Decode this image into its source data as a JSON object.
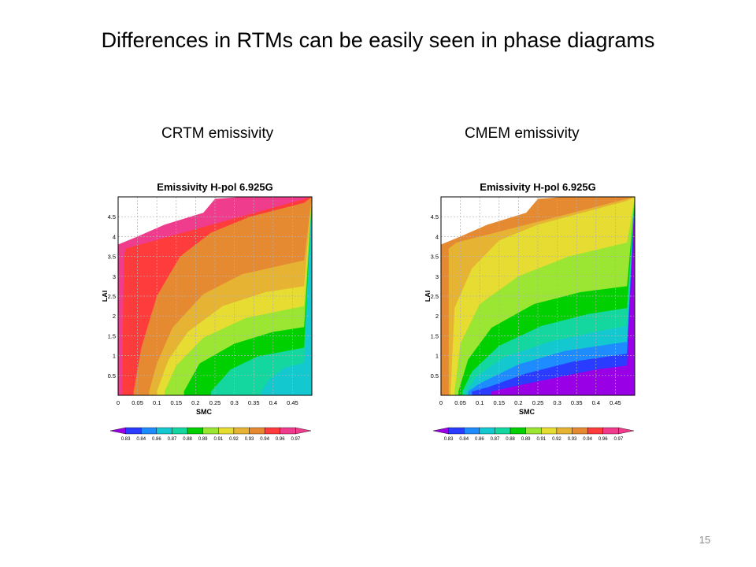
{
  "slide": {
    "title": "Differences in RTMs can be easily seen in phase diagrams",
    "page_number": "15"
  },
  "colors": [
    "#9a00e6",
    "#2a3cff",
    "#1e8cff",
    "#14c8d0",
    "#14d7a0",
    "#00d000",
    "#9ae632",
    "#e6dc32",
    "#e6b432",
    "#e68a32",
    "#ff3c3c",
    "#f03c8c"
  ],
  "chart_data": [
    {
      "type": "heatmap",
      "panel_label": "CRTM emissivity",
      "title": "Emissivity H-pol 6.925G",
      "xlabel": "SMC",
      "ylabel": "LAI",
      "xlim": [
        0,
        0.5
      ],
      "ylim": [
        0,
        5
      ],
      "xticks": [
        "0",
        "0.05",
        "0.1",
        "0.15",
        "0.2",
        "0.25",
        "0.3",
        "0.35",
        "0.4",
        "0.45"
      ],
      "yticks": [
        "0.5",
        "1",
        "1.5",
        "2",
        "2.5",
        "3",
        "3.5",
        "4",
        "4.5"
      ],
      "grid": true,
      "colorbar_levels": [
        "0.83",
        "0.84",
        "0.86",
        "0.87",
        "0.88",
        "0.89",
        "0.91",
        "0.92",
        "0.93",
        "0.94",
        "0.96",
        "0.97"
      ],
      "contour_boundaries": [
        {
          "level": "0.97",
          "points": [
            [
              0.01,
              0.1
            ],
            [
              0.015,
              3.5
            ],
            [
              0.02,
              3.7
            ]
          ]
        },
        {
          "level": "0.96",
          "points": [
            [
              0.04,
              0.1
            ],
            [
              0.06,
              1.2
            ],
            [
              0.1,
              2.5
            ],
            [
              0.16,
              3.5
            ],
            [
              0.24,
              4.1
            ],
            [
              0.34,
              4.5
            ],
            [
              0.48,
              4.85
            ]
          ]
        },
        {
          "level": "0.94",
          "points": [
            [
              0.08,
              0.1
            ],
            [
              0.1,
              0.8
            ],
            [
              0.14,
              1.7
            ],
            [
              0.22,
              2.55
            ],
            [
              0.32,
              3.05
            ],
            [
              0.48,
              3.4
            ]
          ]
        },
        {
          "level": "0.93",
          "points": [
            [
              0.1,
              0.1
            ],
            [
              0.13,
              0.9
            ],
            [
              0.18,
              1.6
            ],
            [
              0.27,
              2.25
            ],
            [
              0.38,
              2.6
            ],
            [
              0.48,
              2.75
            ]
          ]
        },
        {
          "level": "0.92",
          "points": [
            [
              0.12,
              0.1
            ],
            [
              0.15,
              0.75
            ],
            [
              0.22,
              1.45
            ],
            [
              0.33,
              1.95
            ],
            [
              0.48,
              2.25
            ]
          ]
        },
        {
          "level": "0.91",
          "points": [
            [
              0.17,
              0.1
            ],
            [
              0.21,
              0.8
            ],
            [
              0.3,
              1.3
            ],
            [
              0.4,
              1.6
            ],
            [
              0.48,
              1.72
            ]
          ]
        },
        {
          "level": "0.89",
          "points": [
            [
              0.24,
              0.1
            ],
            [
              0.29,
              0.65
            ],
            [
              0.36,
              0.98
            ],
            [
              0.48,
              1.2
            ]
          ]
        },
        {
          "level": "0.88",
          "points": [
            [
              0.37,
              0.1
            ],
            [
              0.39,
              0.4
            ],
            [
              0.43,
              0.7
            ],
            [
              0.48,
              0.82
            ]
          ]
        }
      ]
    },
    {
      "type": "heatmap",
      "panel_label": "CMEM emissivity",
      "title": "Emissivity H-pol 6.925G",
      "xlabel": "SMC",
      "ylabel": "LAI",
      "xlim": [
        0,
        0.5
      ],
      "ylim": [
        0,
        5
      ],
      "xticks": [
        "0",
        "0.05",
        "0.1",
        "0.15",
        "0.2",
        "0.25",
        "0.3",
        "0.35",
        "0.4",
        "0.45"
      ],
      "yticks": [
        "0.5",
        "1",
        "1.5",
        "2",
        "2.5",
        "3",
        "3.5",
        "4",
        "4.5"
      ],
      "grid": true,
      "colorbar_levels": [
        "0.83",
        "0.84",
        "0.86",
        "0.87",
        "0.88",
        "0.89",
        "0.91",
        "0.92",
        "0.93",
        "0.94",
        "0.96",
        "0.97"
      ],
      "contour_boundaries": [
        {
          "level": "0.94",
          "points": [
            [
              0.02,
              0.1
            ],
            [
              0.02,
              3.7
            ],
            [
              0.04,
              3.85
            ]
          ]
        },
        {
          "level": "0.93",
          "points": [
            [
              0.025,
              0.1
            ],
            [
              0.035,
              2.2
            ],
            [
              0.08,
              3.2
            ],
            [
              0.15,
              3.9
            ],
            [
              0.25,
              4.3
            ],
            [
              0.48,
              4.9
            ]
          ]
        },
        {
          "level": "0.92",
          "points": [
            [
              0.035,
              0.1
            ],
            [
              0.05,
              1.3
            ],
            [
              0.1,
              2.3
            ],
            [
              0.2,
              3.0
            ],
            [
              0.33,
              3.5
            ],
            [
              0.48,
              3.85
            ]
          ]
        },
        {
          "level": "0.91",
          "points": [
            [
              0.045,
              0.1
            ],
            [
              0.07,
              0.9
            ],
            [
              0.13,
              1.7
            ],
            [
              0.24,
              2.3
            ],
            [
              0.36,
              2.6
            ],
            [
              0.48,
              2.75
            ]
          ]
        },
        {
          "level": "0.89",
          "points": [
            [
              0.055,
              0.1
            ],
            [
              0.08,
              0.6
            ],
            [
              0.15,
              1.25
            ],
            [
              0.26,
              1.75
            ],
            [
              0.38,
              2.05
            ],
            [
              0.48,
              2.2
            ]
          ]
        },
        {
          "level": "0.88",
          "points": [
            [
              0.065,
              0.1
            ],
            [
              0.09,
              0.45
            ],
            [
              0.16,
              0.95
            ],
            [
              0.28,
              1.35
            ],
            [
              0.4,
              1.6
            ],
            [
              0.48,
              1.75
            ]
          ]
        },
        {
          "level": "0.87",
          "points": [
            [
              0.07,
              0.1
            ],
            [
              0.1,
              0.3
            ],
            [
              0.2,
              0.78
            ],
            [
              0.32,
              1.12
            ],
            [
              0.48,
              1.35
            ]
          ]
        },
        {
          "level": "0.86",
          "points": [
            [
              0.08,
              0.1
            ],
            [
              0.12,
              0.2
            ],
            [
              0.22,
              0.55
            ],
            [
              0.34,
              0.85
            ],
            [
              0.48,
              1.05
            ]
          ]
        },
        {
          "level": "0.84",
          "points": [
            [
              0.13,
              0.1
            ],
            [
              0.2,
              0.25
            ],
            [
              0.3,
              0.45
            ],
            [
              0.4,
              0.65
            ],
            [
              0.48,
              0.75
            ]
          ]
        }
      ]
    }
  ]
}
